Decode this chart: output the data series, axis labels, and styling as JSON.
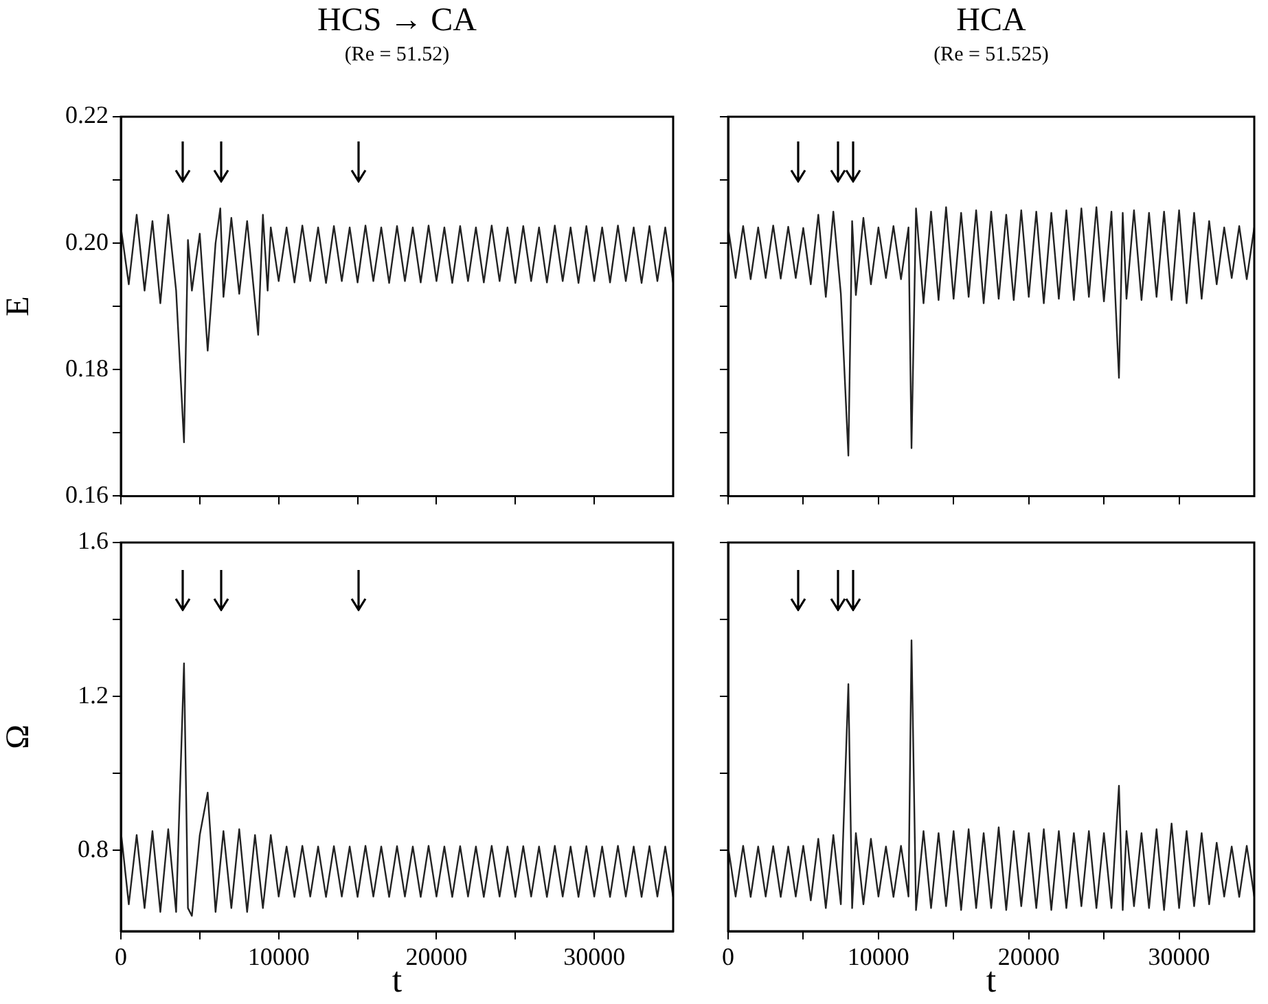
{
  "chart_data": [
    {
      "type": "line",
      "title": "HCS → CA",
      "subtitle": "(Re = 51.52)",
      "ylabel": "E",
      "tick_labels": "y",
      "xlim": [
        0,
        35000
      ],
      "xticks": [
        0,
        {
          "value": 5000,
          "label": null
        },
        10000,
        {
          "value": 15000,
          "label": null
        },
        20000,
        {
          "value": 25000,
          "label": null
        },
        30000
      ],
      "ylim": [
        0.16,
        0.22
      ],
      "yticks": [
        0.16,
        {
          "value": 0.17,
          "label": null
        },
        0.18,
        {
          "value": 0.19,
          "label": null
        },
        {
          "value": 0.2,
          "label": "0.20"
        },
        {
          "value": 0.21,
          "label": null
        },
        0.22
      ],
      "series": [
        {
          "color": "#222222",
          "x": [
            0,
            500,
            1000,
            1500,
            2000,
            2500,
            3000,
            3500,
            4000,
            4250,
            4500,
            5000,
            5500,
            6000,
            6300,
            6500,
            7000,
            7500,
            8000,
            8700,
            9000,
            9300,
            9500,
            10000,
            10500,
            11000,
            11500,
            12000,
            12500,
            13000,
            13500,
            14000,
            14500,
            15000,
            15500,
            16000,
            16500,
            17000,
            17500,
            18000,
            18500,
            19000,
            19500,
            20000,
            20500,
            21000,
            21500,
            22000,
            22500,
            23000,
            23500,
            24000,
            24500,
            25000,
            25500,
            26000,
            26500,
            27000,
            27500,
            28000,
            28500,
            29000,
            29500,
            30000,
            30500,
            31000,
            31500,
            32000,
            32500,
            33000,
            33500,
            34000,
            34500,
            35000
          ],
          "values": [
            0.2025,
            0.1935,
            0.2045,
            0.1925,
            0.2035,
            0.1905,
            0.2045,
            0.1925,
            0.1685,
            0.2005,
            0.1925,
            0.2015,
            0.183,
            0.2,
            0.2055,
            0.1915,
            0.204,
            0.192,
            0.2035,
            0.1855,
            0.2045,
            0.1925,
            0.2025,
            0.194,
            0.2025,
            0.1938,
            0.2028,
            0.194,
            0.2025,
            0.1937,
            0.2027,
            0.194,
            0.2025,
            0.1938,
            0.2028,
            0.194,
            0.2025,
            0.1937,
            0.2027,
            0.194,
            0.2025,
            0.1938,
            0.2028,
            0.194,
            0.2025,
            0.1937,
            0.2027,
            0.194,
            0.2025,
            0.1938,
            0.2028,
            0.194,
            0.2025,
            0.1937,
            0.2027,
            0.194,
            0.2025,
            0.1938,
            0.2028,
            0.194,
            0.2025,
            0.1937,
            0.2027,
            0.194,
            0.2025,
            0.1938,
            0.2028,
            0.194,
            0.2025,
            0.1937,
            0.2027,
            0.194,
            0.2025,
            0.1938
          ]
        }
      ]
    },
    {
      "type": "line",
      "title": "HCA",
      "subtitle": "(Re = 51.525)",
      "tick_labels": false,
      "xlim": [
        0,
        35000
      ],
      "xticks": [
        0,
        {
          "value": 5000,
          "label": null
        },
        10000,
        {
          "value": 15000,
          "label": null
        },
        20000,
        {
          "value": 25000,
          "label": null
        },
        30000
      ],
      "ylim": [
        0.16,
        0.22
      ],
      "yticks": [
        {
          "value": 0.16,
          "label": null
        },
        {
          "value": 0.17,
          "label": null
        },
        {
          "value": 0.18,
          "label": null
        },
        {
          "value": 0.19,
          "label": null
        },
        {
          "value": 0.2,
          "label": null
        },
        {
          "value": 0.21,
          "label": null
        },
        {
          "value": 0.22,
          "label": null
        }
      ],
      "series": [
        {
          "color": "#222222",
          "x": [
            0,
            500,
            1000,
            1500,
            2000,
            2500,
            3000,
            3500,
            4000,
            4500,
            5000,
            5500,
            6000,
            6500,
            7000,
            7500,
            8000,
            8250,
            8500,
            9000,
            9500,
            10000,
            10500,
            11000,
            11500,
            12000,
            12200,
            12500,
            13000,
            13500,
            14000,
            14500,
            15000,
            15500,
            16000,
            16500,
            17000,
            17500,
            18000,
            18500,
            19000,
            19500,
            20000,
            20500,
            21000,
            21500,
            22000,
            22500,
            23000,
            23500,
            24000,
            24500,
            25000,
            25500,
            26000,
            26250,
            26500,
            27000,
            27500,
            28000,
            28500,
            29000,
            29500,
            30000,
            30500,
            31000,
            31500,
            32000,
            32500,
            33000,
            33500,
            34000,
            34500,
            35000
          ],
          "values": [
            0.2025,
            0.1945,
            0.2027,
            0.1943,
            0.2025,
            0.1945,
            0.2028,
            0.1944,
            0.2026,
            0.1945,
            0.2024,
            0.1935,
            0.2045,
            0.1915,
            0.205,
            0.192,
            0.1664,
            0.2035,
            0.1918,
            0.204,
            0.1935,
            0.2025,
            0.1945,
            0.2027,
            0.1943,
            0.2025,
            0.1676,
            0.2055,
            0.1905,
            0.205,
            0.191,
            0.2057,
            0.1912,
            0.2048,
            0.1915,
            0.2052,
            0.1905,
            0.205,
            0.1912,
            0.2045,
            0.191,
            0.2052,
            0.1915,
            0.205,
            0.1905,
            0.2048,
            0.1912,
            0.2052,
            0.191,
            0.2055,
            0.1915,
            0.2057,
            0.1908,
            0.205,
            0.1787,
            0.2048,
            0.1912,
            0.2052,
            0.191,
            0.2048,
            0.1915,
            0.205,
            0.191,
            0.2052,
            0.1905,
            0.2048,
            0.1912,
            0.2035,
            0.1935,
            0.2025,
            0.1945,
            0.2027,
            0.1943,
            0.2025
          ]
        }
      ]
    },
    {
      "type": "line",
      "ylabel": "Ω",
      "xlabel": "t",
      "xlim": [
        0,
        35000
      ],
      "xticks": [
        0,
        {
          "value": 5000,
          "label": null
        },
        10000,
        {
          "value": 15000,
          "label": null
        },
        20000,
        {
          "value": 25000,
          "label": null
        },
        30000
      ],
      "ylim": [
        0.59,
        1.6
      ],
      "yticks": [
        0.8,
        {
          "value": 1.0,
          "label": null
        },
        1.2,
        {
          "value": 1.4,
          "label": null
        },
        1.6
      ],
      "series": [
        {
          "color": "#222222",
          "x": [
            0,
            500,
            1000,
            1500,
            2000,
            2500,
            3000,
            3500,
            4000,
            4250,
            4500,
            5000,
            5500,
            6000,
            6500,
            7000,
            7500,
            8000,
            8500,
            9000,
            9500,
            10000,
            10500,
            11000,
            11500,
            12000,
            12500,
            13000,
            13500,
            14000,
            14500,
            15000,
            15500,
            16000,
            16500,
            17000,
            17500,
            18000,
            18500,
            19000,
            19500,
            20000,
            20500,
            21000,
            21500,
            22000,
            22500,
            23000,
            23500,
            24000,
            24500,
            25000,
            25500,
            26000,
            26500,
            27000,
            27500,
            28000,
            28500,
            29000,
            29500,
            30000,
            30500,
            31000,
            31500,
            32000,
            32500,
            33000,
            33500,
            34000,
            34500,
            35000
          ],
          "values": [
            0.85,
            0.66,
            0.84,
            0.65,
            0.85,
            0.64,
            0.855,
            0.64,
            1.286,
            0.65,
            0.63,
            0.84,
            0.95,
            0.64,
            0.85,
            0.65,
            0.855,
            0.64,
            0.84,
            0.65,
            0.84,
            0.68,
            0.81,
            0.679,
            0.812,
            0.68,
            0.81,
            0.679,
            0.811,
            0.68,
            0.81,
            0.679,
            0.812,
            0.68,
            0.81,
            0.679,
            0.811,
            0.68,
            0.81,
            0.679,
            0.812,
            0.68,
            0.81,
            0.679,
            0.811,
            0.68,
            0.81,
            0.679,
            0.812,
            0.68,
            0.81,
            0.679,
            0.811,
            0.68,
            0.81,
            0.679,
            0.812,
            0.68,
            0.81,
            0.679,
            0.811,
            0.68,
            0.81,
            0.679,
            0.812,
            0.68,
            0.81,
            0.679,
            0.811,
            0.68,
            0.81,
            0.679
          ]
        }
      ]
    },
    {
      "type": "line",
      "xlabel": "t",
      "tick_labels": "x",
      "xlim": [
        0,
        35000
      ],
      "xticks": [
        0,
        {
          "value": 5000,
          "label": null
        },
        10000,
        {
          "value": 15000,
          "label": null
        },
        20000,
        {
          "value": 25000,
          "label": null
        },
        30000
      ],
      "ylim": [
        0.59,
        1.6
      ],
      "yticks": [
        {
          "value": 0.8,
          "label": null
        },
        {
          "value": 1.0,
          "label": null
        },
        {
          "value": 1.2,
          "label": null
        },
        {
          "value": 1.4,
          "label": null
        },
        {
          "value": 1.6,
          "label": null
        }
      ],
      "series": [
        {
          "color": "#222222",
          "x": [
            0,
            500,
            1000,
            1500,
            2000,
            2500,
            3000,
            3500,
            4000,
            4500,
            5000,
            5500,
            6000,
            6500,
            7000,
            7500,
            8000,
            8250,
            8500,
            9000,
            9500,
            10000,
            10500,
            11000,
            11500,
            12000,
            12200,
            12500,
            13000,
            13500,
            14000,
            14500,
            15000,
            15500,
            16000,
            16500,
            17000,
            17500,
            18000,
            18500,
            19000,
            19500,
            20000,
            20500,
            21000,
            21500,
            22000,
            22500,
            23000,
            23500,
            24000,
            24500,
            25000,
            25500,
            26000,
            26250,
            26500,
            27000,
            27500,
            28000,
            28500,
            29000,
            29500,
            30000,
            30500,
            31000,
            31500,
            32000,
            32500,
            33000,
            33500,
            34000,
            34500,
            35000
          ],
          "values": [
            0.81,
            0.68,
            0.812,
            0.679,
            0.81,
            0.68,
            0.811,
            0.679,
            0.81,
            0.68,
            0.812,
            0.67,
            0.83,
            0.65,
            0.84,
            0.66,
            1.232,
            0.65,
            0.845,
            0.66,
            0.83,
            0.68,
            0.81,
            0.679,
            0.812,
            0.68,
            1.346,
            0.645,
            0.85,
            0.65,
            0.845,
            0.655,
            0.85,
            0.645,
            0.855,
            0.65,
            0.845,
            0.65,
            0.86,
            0.645,
            0.85,
            0.655,
            0.845,
            0.65,
            0.855,
            0.645,
            0.85,
            0.65,
            0.845,
            0.655,
            0.85,
            0.65,
            0.845,
            0.65,
            0.968,
            0.645,
            0.85,
            0.655,
            0.845,
            0.65,
            0.855,
            0.645,
            0.87,
            0.65,
            0.85,
            0.655,
            0.845,
            0.66,
            0.82,
            0.68,
            0.81,
            0.679,
            0.812,
            0.68
          ]
        }
      ]
    }
  ]
}
